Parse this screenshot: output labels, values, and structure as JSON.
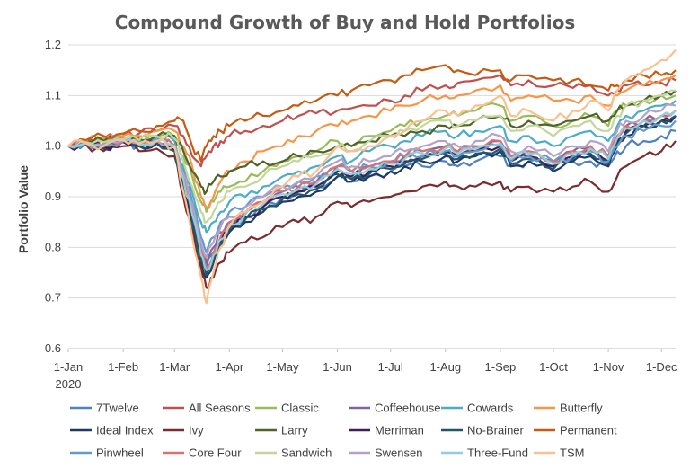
{
  "chart_data": {
    "type": "line",
    "title": "Compound Growth of Buy and Hold Portfolios",
    "xlabel": "",
    "ylabel": "Portfolio Value",
    "ylim": [
      0.6,
      1.2
    ],
    "yticks": [
      "0.6",
      "0.7",
      "0.8",
      "0.9",
      "1.0",
      "1.1",
      "1.2"
    ],
    "xlim": [
      0,
      343
    ],
    "xticks": [
      {
        "label": "1-Jan",
        "day": 0
      },
      {
        "label": "1-Feb",
        "day": 31
      },
      {
        "label": "1-Mar",
        "day": 60
      },
      {
        "label": "1-Apr",
        "day": 91
      },
      {
        "label": "1-May",
        "day": 121
      },
      {
        "label": "1-Jun",
        "day": 152
      },
      {
        "label": "1-Jul",
        "day": 182
      },
      {
        "label": "1-Aug",
        "day": 213
      },
      {
        "label": "1-Sep",
        "day": 244
      },
      {
        "label": "1-Oct",
        "day": 274
      },
      {
        "label": "1-Nov",
        "day": 305
      },
      {
        "label": "1-Dec",
        "day": 335
      }
    ],
    "year_label": "2020",
    "grid": true,
    "legend_position": "bottom",
    "x": [
      0,
      10,
      20,
      31,
      40,
      50,
      60,
      65,
      70,
      75,
      78,
      82,
      86,
      91,
      100,
      110,
      121,
      130,
      140,
      152,
      160,
      170,
      182,
      190,
      200,
      213,
      220,
      230,
      244,
      250,
      260,
      274,
      285,
      295,
      305,
      310,
      315,
      325,
      335,
      343
    ],
    "series": [
      {
        "name": "7Twelve",
        "color": "#4e81bd",
        "values": [
          1.0,
          1.005,
          1.0,
          1.01,
          1.0,
          1.005,
          0.99,
          0.93,
          0.87,
          0.8,
          0.76,
          0.79,
          0.82,
          0.84,
          0.86,
          0.88,
          0.9,
          0.91,
          0.92,
          0.94,
          0.93,
          0.94,
          0.95,
          0.96,
          0.96,
          0.97,
          0.96,
          0.97,
          0.98,
          0.96,
          0.97,
          0.96,
          0.97,
          0.97,
          0.96,
          0.99,
          1.0,
          1.01,
          1.02,
          1.03
        ]
      },
      {
        "name": "All Seasons",
        "color": "#c0504d",
        "values": [
          1.0,
          1.01,
          1.015,
          1.02,
          1.025,
          1.03,
          1.04,
          1.02,
          0.98,
          0.96,
          0.98,
          1.0,
          1.01,
          1.02,
          1.03,
          1.04,
          1.05,
          1.06,
          1.065,
          1.07,
          1.075,
          1.08,
          1.09,
          1.1,
          1.11,
          1.12,
          1.125,
          1.13,
          1.14,
          1.12,
          1.13,
          1.12,
          1.115,
          1.12,
          1.1,
          1.11,
          1.12,
          1.12,
          1.125,
          1.13
        ]
      },
      {
        "name": "Classic",
        "color": "#9bbb59",
        "values": [
          1.0,
          1.008,
          1.01,
          1.015,
          1.01,
          1.02,
          1.02,
          0.98,
          0.94,
          0.89,
          0.87,
          0.89,
          0.91,
          0.92,
          0.93,
          0.95,
          0.97,
          0.98,
          0.99,
          1.01,
          1.0,
          1.02,
          1.03,
          1.04,
          1.05,
          1.06,
          1.06,
          1.07,
          1.08,
          1.05,
          1.06,
          1.04,
          1.05,
          1.06,
          1.04,
          1.07,
          1.08,
          1.09,
          1.1,
          1.1
        ]
      },
      {
        "name": "Coffeehouse",
        "color": "#8064a2",
        "values": [
          1.0,
          1.005,
          1.0,
          1.01,
          1.005,
          1.01,
          1.0,
          0.94,
          0.88,
          0.8,
          0.77,
          0.8,
          0.83,
          0.85,
          0.87,
          0.89,
          0.91,
          0.92,
          0.93,
          0.96,
          0.95,
          0.96,
          0.97,
          0.98,
          0.99,
          1.0,
          0.99,
          1.0,
          1.01,
          0.98,
          0.99,
          0.97,
          0.99,
          1.0,
          0.98,
          1.02,
          1.04,
          1.05,
          1.06,
          1.07
        ]
      },
      {
        "name": "Cowards",
        "color": "#4bacc6",
        "values": [
          1.0,
          1.006,
          1.005,
          1.012,
          1.01,
          1.015,
          1.01,
          0.96,
          0.91,
          0.85,
          0.83,
          0.85,
          0.87,
          0.89,
          0.9,
          0.92,
          0.94,
          0.95,
          0.96,
          0.98,
          0.97,
          0.99,
          1.0,
          1.01,
          1.02,
          1.03,
          1.02,
          1.03,
          1.04,
          1.01,
          1.02,
          1.0,
          1.02,
          1.03,
          1.01,
          1.04,
          1.06,
          1.07,
          1.08,
          1.09
        ]
      },
      {
        "name": "Butterfly",
        "color": "#f79646",
        "values": [
          1.0,
          1.01,
          1.015,
          1.02,
          1.02,
          1.03,
          1.03,
          1.0,
          0.96,
          0.9,
          0.88,
          0.9,
          0.93,
          0.95,
          0.97,
          0.99,
          1.0,
          1.02,
          1.03,
          1.04,
          1.05,
          1.06,
          1.07,
          1.08,
          1.09,
          1.1,
          1.1,
          1.11,
          1.12,
          1.09,
          1.1,
          1.09,
          1.09,
          1.1,
          1.08,
          1.1,
          1.11,
          1.12,
          1.13,
          1.14
        ]
      },
      {
        "name": "Ideal Index",
        "color": "#1f3864",
        "values": [
          1.0,
          1.005,
          0.995,
          1.01,
          1.0,
          1.005,
          0.99,
          0.92,
          0.85,
          0.77,
          0.74,
          0.77,
          0.8,
          0.83,
          0.85,
          0.87,
          0.89,
          0.9,
          0.91,
          0.94,
          0.93,
          0.94,
          0.95,
          0.96,
          0.97,
          0.98,
          0.97,
          0.98,
          0.99,
          0.96,
          0.97,
          0.95,
          0.97,
          0.98,
          0.96,
          1.0,
          1.02,
          1.04,
          1.05,
          1.06
        ]
      },
      {
        "name": "Ivy",
        "color": "#7b2c2c",
        "values": [
          1.0,
          1.003,
          0.99,
          1.0,
          0.99,
          0.995,
          0.98,
          0.9,
          0.83,
          0.76,
          0.72,
          0.74,
          0.77,
          0.79,
          0.81,
          0.82,
          0.84,
          0.85,
          0.86,
          0.89,
          0.88,
          0.89,
          0.9,
          0.91,
          0.92,
          0.93,
          0.92,
          0.92,
          0.93,
          0.91,
          0.92,
          0.91,
          0.92,
          0.93,
          0.91,
          0.94,
          0.96,
          0.98,
          0.99,
          1.01
        ]
      },
      {
        "name": "Larry",
        "color": "#4f6228",
        "values": [
          1.0,
          1.008,
          1.01,
          1.015,
          1.015,
          1.02,
          1.02,
          0.99,
          0.95,
          0.92,
          0.91,
          0.93,
          0.94,
          0.95,
          0.96,
          0.97,
          0.97,
          0.98,
          0.99,
          1.0,
          1.0,
          1.01,
          1.02,
          1.02,
          1.03,
          1.04,
          1.04,
          1.05,
          1.06,
          1.04,
          1.05,
          1.04,
          1.05,
          1.06,
          1.05,
          1.07,
          1.08,
          1.09,
          1.1,
          1.11
        ]
      },
      {
        "name": "Merriman",
        "color": "#3f1f5a",
        "values": [
          1.0,
          1.004,
          0.998,
          1.008,
          1.0,
          1.005,
          0.99,
          0.93,
          0.86,
          0.78,
          0.75,
          0.78,
          0.81,
          0.84,
          0.86,
          0.88,
          0.9,
          0.91,
          0.92,
          0.95,
          0.94,
          0.95,
          0.96,
          0.97,
          0.98,
          0.99,
          0.98,
          0.99,
          1.0,
          0.97,
          0.98,
          0.96,
          0.98,
          0.99,
          0.97,
          1.01,
          1.03,
          1.04,
          1.05,
          1.06
        ]
      },
      {
        "name": "No-Brainer",
        "color": "#215868",
        "values": [
          1.0,
          1.004,
          0.997,
          1.009,
          1.0,
          1.005,
          0.99,
          0.925,
          0.855,
          0.775,
          0.745,
          0.775,
          0.805,
          0.835,
          0.855,
          0.875,
          0.895,
          0.905,
          0.915,
          0.945,
          0.935,
          0.945,
          0.955,
          0.965,
          0.975,
          0.985,
          0.975,
          0.985,
          0.995,
          0.965,
          0.975,
          0.955,
          0.975,
          0.985,
          0.965,
          1.005,
          1.025,
          1.04,
          1.05,
          1.06
        ]
      },
      {
        "name": "Permanent",
        "color": "#c55a11",
        "values": [
          1.0,
          1.012,
          1.02,
          1.025,
          1.03,
          1.04,
          1.05,
          1.05,
          1.0,
          0.97,
          1.0,
          1.02,
          1.03,
          1.04,
          1.05,
          1.06,
          1.07,
          1.08,
          1.09,
          1.1,
          1.11,
          1.12,
          1.13,
          1.14,
          1.15,
          1.16,
          1.15,
          1.14,
          1.15,
          1.13,
          1.14,
          1.13,
          1.13,
          1.12,
          1.11,
          1.12,
          1.13,
          1.14,
          1.14,
          1.15
        ]
      },
      {
        "name": "Pinwheel",
        "color": "#6699cc",
        "values": [
          1.0,
          1.006,
          1.0,
          1.01,
          1.005,
          1.01,
          1.0,
          0.95,
          0.89,
          0.82,
          0.79,
          0.82,
          0.85,
          0.87,
          0.88,
          0.9,
          0.92,
          0.93,
          0.94,
          0.96,
          0.95,
          0.96,
          0.97,
          0.98,
          0.98,
          0.99,
          0.98,
          0.99,
          1.0,
          0.97,
          0.98,
          0.97,
          0.98,
          0.99,
          0.97,
          1.0,
          1.02,
          1.03,
          1.04,
          1.05
        ]
      },
      {
        "name": "Core Four",
        "color": "#d9726e",
        "values": [
          1.0,
          1.006,
          1.002,
          1.012,
          1.005,
          1.01,
          1.0,
          0.94,
          0.87,
          0.79,
          0.76,
          0.79,
          0.82,
          0.85,
          0.87,
          0.89,
          0.91,
          0.92,
          0.93,
          0.96,
          0.95,
          0.96,
          0.97,
          0.98,
          0.99,
          1.0,
          0.99,
          1.0,
          1.01,
          0.98,
          0.99,
          0.97,
          0.99,
          1.0,
          0.98,
          1.02,
          1.04,
          1.05,
          1.06,
          1.07
        ]
      },
      {
        "name": "Sandwich",
        "color": "#c3d69b",
        "values": [
          1.0,
          1.008,
          1.008,
          1.014,
          1.012,
          1.02,
          1.015,
          0.97,
          0.92,
          0.87,
          0.85,
          0.87,
          0.89,
          0.91,
          0.92,
          0.94,
          0.96,
          0.97,
          0.98,
          1.0,
          0.99,
          1.01,
          1.02,
          1.03,
          1.04,
          1.05,
          1.04,
          1.05,
          1.06,
          1.03,
          1.04,
          1.02,
          1.04,
          1.05,
          1.03,
          1.06,
          1.08,
          1.09,
          1.1,
          1.11
        ]
      },
      {
        "name": "Swensen",
        "color": "#b3a2c7",
        "values": [
          1.0,
          1.006,
          1.002,
          1.01,
          1.005,
          1.012,
          1.0,
          0.945,
          0.885,
          0.81,
          0.78,
          0.81,
          0.84,
          0.86,
          0.88,
          0.9,
          0.92,
          0.93,
          0.94,
          0.97,
          0.96,
          0.97,
          0.98,
          0.99,
          1.0,
          1.01,
          1.0,
          1.01,
          1.02,
          0.99,
          1.0,
          0.98,
          1.0,
          1.01,
          0.99,
          1.03,
          1.05,
          1.06,
          1.07,
          1.08
        ]
      },
      {
        "name": "Three-Fund",
        "color": "#92cddc",
        "values": [
          1.0,
          1.005,
          1.0,
          1.011,
          1.003,
          1.01,
          1.0,
          0.935,
          0.865,
          0.785,
          0.755,
          0.785,
          0.815,
          0.845,
          0.865,
          0.885,
          0.905,
          0.915,
          0.925,
          0.955,
          0.945,
          0.955,
          0.965,
          0.975,
          0.985,
          0.995,
          0.985,
          0.995,
          1.005,
          0.975,
          0.985,
          0.965,
          0.985,
          0.995,
          0.975,
          1.015,
          1.035,
          1.05,
          1.06,
          1.07
        ]
      },
      {
        "name": "TSM",
        "color": "#fac090",
        "values": [
          1.0,
          1.006,
          1.0,
          1.012,
          1.005,
          1.01,
          1.0,
          0.91,
          0.82,
          0.74,
          0.69,
          0.75,
          0.8,
          0.84,
          0.87,
          0.89,
          0.92,
          0.94,
          0.95,
          1.0,
          0.99,
          1.0,
          1.02,
          1.03,
          1.05,
          1.07,
          1.06,
          1.08,
          1.1,
          1.06,
          1.07,
          1.05,
          1.07,
          1.09,
          1.07,
          1.11,
          1.13,
          1.15,
          1.17,
          1.19
        ]
      }
    ]
  }
}
